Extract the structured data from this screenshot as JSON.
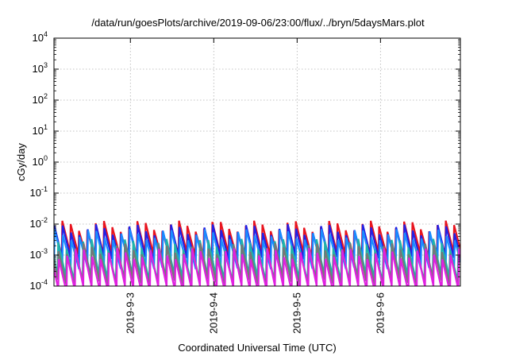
{
  "chart_data": {
    "type": "line",
    "title": "/data/run/goesPlots/archive/2019-09-06/23:00/flux/../bryn/5daysMars.plot",
    "xlabel": "Coordinated Universal Time (UTC)",
    "ylabel": "cGy/day",
    "yscale": "log",
    "ylim": [
      0.0001,
      10000
    ],
    "y_ticks": [
      {
        "base": "10",
        "exp": "-4"
      },
      {
        "base": "10",
        "exp": "-3"
      },
      {
        "base": "10",
        "exp": "-2"
      },
      {
        "base": "10",
        "exp": "-1"
      },
      {
        "base": "10",
        "exp": "0"
      },
      {
        "base": "10",
        "exp": "1"
      },
      {
        "base": "10",
        "exp": "2"
      },
      {
        "base": "10",
        "exp": "3"
      },
      {
        "base": "10",
        "exp": "4"
      }
    ],
    "xlim": [
      "2019-09-02T02:00",
      "2019-09-06T23:00"
    ],
    "x_ticks": [
      "2019-9-3",
      "2019-9-4",
      "2019-9-5",
      "2019-9-6"
    ],
    "grid": true,
    "pattern": "sawtooth",
    "sawtooth_period_hours": 2.4,
    "series": [
      {
        "color": "#e8141e",
        "peak": 0.0085,
        "trough": 0.00095,
        "phase": 0.0
      },
      {
        "color": "#2121e6",
        "peak": 0.0065,
        "trough": 0.0007,
        "phase": 0.04
      },
      {
        "color": "#1a8cff",
        "peak": 0.0045,
        "trough": 0.00045,
        "phase": 0.08
      },
      {
        "color": "#20b2aa",
        "peak": 0.0022,
        "trough": 0.00018,
        "phase": 0.5
      },
      {
        "color": "#777777",
        "peak": 0.0016,
        "trough": 0.00013,
        "phase": 0.54
      },
      {
        "color": "#e020e0",
        "peak": 0.0011,
        "trough": 8e-05,
        "phase": 0.58
      }
    ]
  }
}
